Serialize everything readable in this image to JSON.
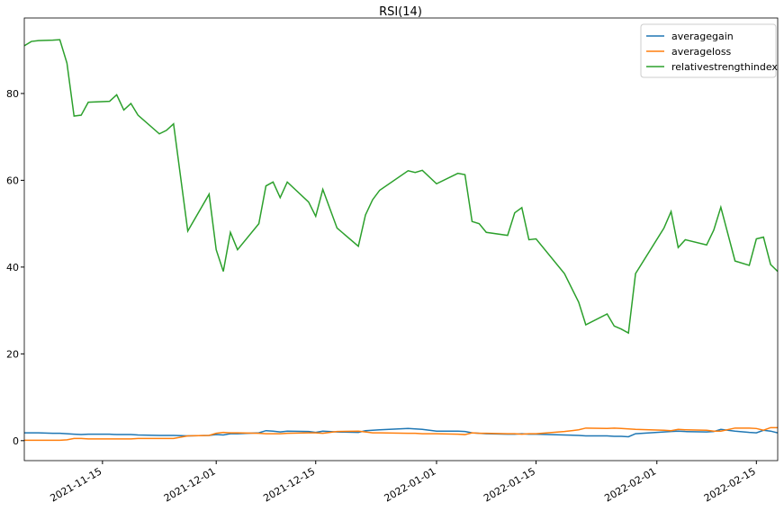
{
  "chart_data": {
    "type": "line",
    "title": "RSI(14)",
    "x": [
      "2021-11-04",
      "2021-11-05",
      "2021-11-06",
      "2021-11-08",
      "2021-11-09",
      "2021-11-10",
      "2021-11-11",
      "2021-11-12",
      "2021-11-13",
      "2021-11-16",
      "2021-11-17",
      "2021-11-18",
      "2021-11-19",
      "2021-11-20",
      "2021-11-23",
      "2021-11-24",
      "2021-11-25",
      "2021-11-27",
      "2021-11-30",
      "2021-12-01",
      "2021-12-02",
      "2021-12-03",
      "2021-12-04",
      "2021-12-07",
      "2021-12-08",
      "2021-12-09",
      "2021-12-10",
      "2021-12-11",
      "2021-12-14",
      "2021-12-15",
      "2021-12-16",
      "2021-12-18",
      "2021-12-21",
      "2021-12-22",
      "2021-12-23",
      "2021-12-24",
      "2021-12-28",
      "2021-12-29",
      "2021-12-30",
      "2022-01-01",
      "2022-01-04",
      "2022-01-05",
      "2022-01-06",
      "2022-01-07",
      "2022-01-08",
      "2022-01-11",
      "2022-01-12",
      "2022-01-13",
      "2022-01-14",
      "2022-01-15",
      "2022-01-19",
      "2022-01-21",
      "2022-01-22",
      "2022-01-25",
      "2022-01-26",
      "2022-01-27",
      "2022-01-28",
      "2022-01-29",
      "2022-02-02",
      "2022-02-03",
      "2022-02-04",
      "2022-02-05",
      "2022-02-08",
      "2022-02-09",
      "2022-02-10",
      "2022-02-12",
      "2022-02-14",
      "2022-02-15",
      "2022-02-16",
      "2022-02-17",
      "2022-02-18"
    ],
    "series": [
      {
        "name": "averagegain",
        "color": "#1f77b4",
        "values": [
          1.8,
          1.8,
          1.8,
          1.7,
          1.7,
          1.6,
          1.5,
          1.4,
          1.5,
          1.5,
          1.4,
          1.4,
          1.4,
          1.3,
          1.2,
          1.2,
          1.2,
          1.1,
          1.2,
          1.4,
          1.3,
          1.6,
          1.6,
          1.8,
          2.3,
          2.2,
          2.0,
          2.2,
          2.1,
          1.9,
          2.2,
          2.0,
          1.9,
          2.3,
          2.4,
          2.5,
          2.8,
          2.7,
          2.6,
          2.2,
          2.2,
          2.1,
          1.8,
          1.7,
          1.6,
          1.5,
          1.5,
          1.6,
          1.5,
          1.5,
          1.3,
          1.2,
          1.1,
          1.1,
          1.0,
          1.0,
          0.9,
          1.6,
          2.0,
          2.1,
          2.2,
          2.1,
          2.0,
          2.1,
          2.6,
          2.2,
          1.9,
          1.8,
          2.4,
          2.2,
          1.8
        ]
      },
      {
        "name": "averageloss",
        "color": "#ff7f0e",
        "values": [
          0.1,
          0.1,
          0.1,
          0.1,
          0.1,
          0.2,
          0.5,
          0.5,
          0.4,
          0.4,
          0.4,
          0.4,
          0.4,
          0.5,
          0.5,
          0.5,
          0.5,
          1.1,
          1.2,
          1.7,
          1.9,
          1.8,
          1.8,
          1.7,
          1.6,
          1.6,
          1.6,
          1.7,
          1.8,
          1.8,
          1.7,
          2.1,
          2.2,
          2.0,
          1.8,
          1.8,
          1.7,
          1.7,
          1.6,
          1.6,
          1.5,
          1.4,
          1.8,
          1.7,
          1.7,
          1.6,
          1.6,
          1.5,
          1.6,
          1.6,
          2.1,
          2.5,
          2.9,
          2.8,
          2.9,
          2.8,
          2.7,
          2.6,
          2.4,
          2.3,
          2.6,
          2.5,
          2.4,
          2.2,
          2.2,
          2.9,
          2.9,
          2.8,
          2.4,
          3.0,
          3.0
        ]
      },
      {
        "name": "relativestrengthindex",
        "color": "#2ca02c",
        "values": [
          91.0,
          92.0,
          92.2,
          92.3,
          92.4,
          87.0,
          74.8,
          75.0,
          78.0,
          78.2,
          79.7,
          76.2,
          77.7,
          75.0,
          70.7,
          71.5,
          73.0,
          48.3,
          56.8,
          44.0,
          39.0,
          48.0,
          44.0,
          50.0,
          58.7,
          59.6,
          56.0,
          59.6,
          55.0,
          51.7,
          57.9,
          49.0,
          44.8,
          52.0,
          55.5,
          57.7,
          62.2,
          61.8,
          62.3,
          59.2,
          61.6,
          61.3,
          50.5,
          50.0,
          48.0,
          47.3,
          52.5,
          53.7,
          46.3,
          46.5,
          38.5,
          31.9,
          26.7,
          29.2,
          26.4,
          25.7,
          24.8,
          38.5,
          49.0,
          52.8,
          44.5,
          46.3,
          45.1,
          48.5,
          53.8,
          41.4,
          40.4,
          46.5,
          46.9,
          40.6,
          39.0
        ]
      }
    ],
    "xlim": [
      "2021-11-04",
      "2022-02-18"
    ],
    "xticks": [
      "2021-11-15",
      "2021-12-01",
      "2021-12-15",
      "2022-01-01",
      "2022-01-15",
      "2022-02-01",
      "2022-02-15"
    ],
    "ylim": [
      -4.6,
      97.4
    ],
    "yticks": [
      0,
      20,
      40,
      60,
      80
    ],
    "legend": "upper right"
  }
}
